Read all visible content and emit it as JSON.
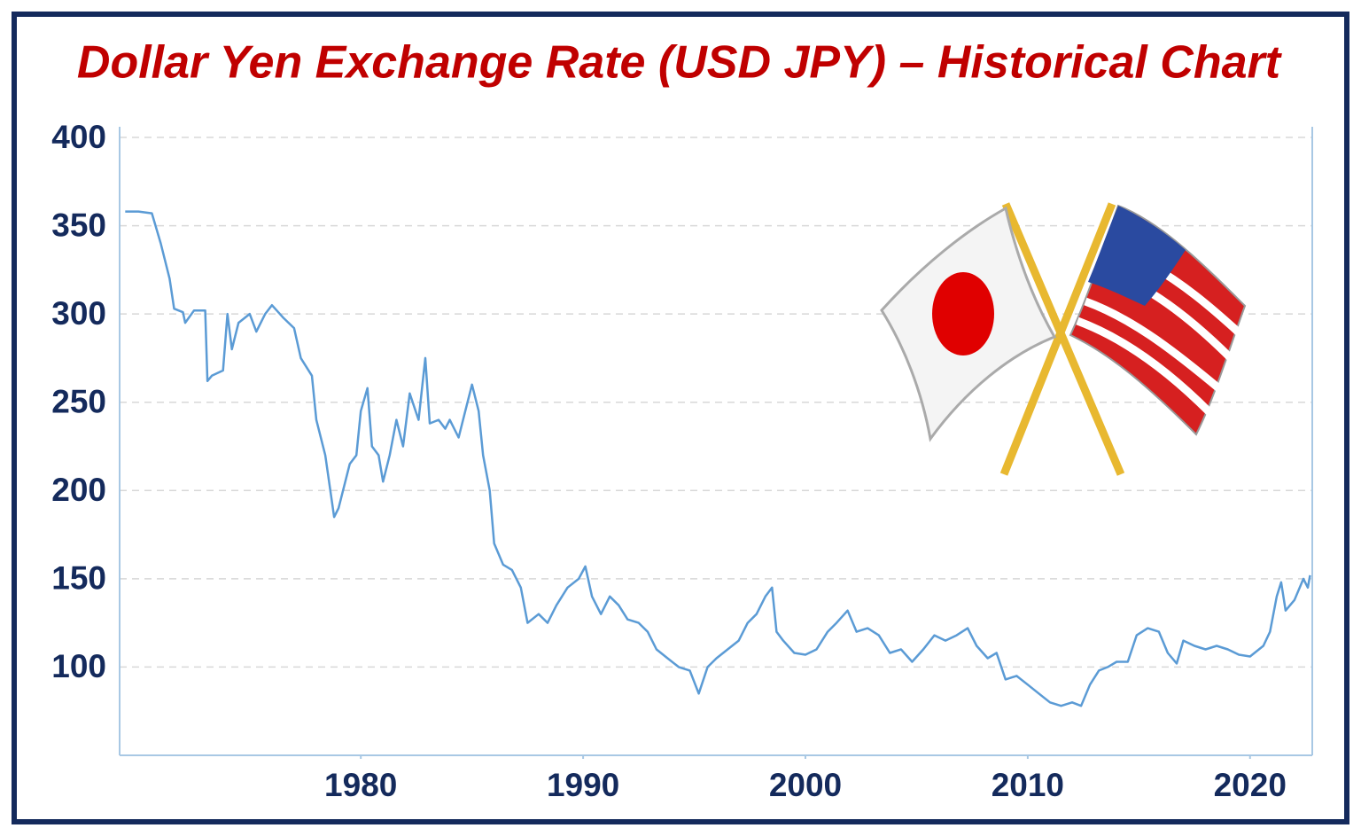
{
  "chart_data": {
    "type": "line",
    "title": "Dollar Yen Exchange Rate (USD JPY) – Historical Chart",
    "xlim": [
      1969.15,
      2022.8
    ],
    "xticks": [
      1980,
      1990,
      2000,
      2010,
      2020
    ],
    "ylim": [
      50,
      400
    ],
    "yticks": [
      100,
      150,
      200,
      250,
      300,
      350,
      400
    ],
    "grid": true,
    "series": [
      {
        "name": "USD JPY",
        "color": "#5b9bd5",
        "x": [
          1969.4,
          1970,
          1970.6,
          1971,
          1971.4,
          1971.6,
          1972,
          1972.1,
          1972.5,
          1973,
          1973.1,
          1973.3,
          1973.8,
          1974,
          1974.2,
          1974.5,
          1975,
          1975.3,
          1975.7,
          1976,
          1976.5,
          1977,
          1977.3,
          1977.8,
          1978,
          1978.4,
          1978.8,
          1979,
          1979.5,
          1979.8,
          1980,
          1980.3,
          1980.5,
          1980.8,
          1981,
          1981.3,
          1981.6,
          1981.9,
          1982.2,
          1982.6,
          1982.9,
          1983.1,
          1983.5,
          1983.8,
          1984,
          1984.4,
          1984.7,
          1985,
          1985.3,
          1985.5,
          1985.8,
          1986,
          1986.4,
          1986.8,
          1987.2,
          1987.5,
          1988,
          1988.4,
          1988.8,
          1989.3,
          1989.8,
          1990.1,
          1990.4,
          1990.8,
          1991.2,
          1991.6,
          1992,
          1992.5,
          1992.9,
          1993.3,
          1993.8,
          1994.3,
          1994.8,
          1995.2,
          1995.6,
          1996,
          1996.5,
          1997,
          1997.4,
          1997.8,
          1998.2,
          1998.5,
          1998.7,
          1999,
          1999.5,
          2000,
          2000.5,
          2001,
          2001.4,
          2001.9,
          2002.3,
          2002.8,
          2003.3,
          2003.8,
          2004.3,
          2004.8,
          2005.3,
          2005.8,
          2006.3,
          2006.8,
          2007.3,
          2007.7,
          2008.2,
          2008.6,
          2009,
          2009.5,
          2010,
          2010.5,
          2011,
          2011.5,
          2012,
          2012.4,
          2012.8,
          2013.2,
          2013.6,
          2014,
          2014.5,
          2014.9,
          2015.4,
          2015.9,
          2016.3,
          2016.7,
          2017,
          2017.5,
          2018,
          2018.5,
          2019,
          2019.5,
          2020,
          2020.6,
          2020.9,
          2021.2,
          2021.4,
          2021.6,
          2022,
          2022.4,
          2022.6,
          2022.7
        ],
        "values": [
          358,
          358,
          357,
          340,
          320,
          303,
          301,
          295,
          302,
          302,
          262,
          265,
          268,
          300,
          280,
          295,
          300,
          290,
          300,
          305,
          298,
          292,
          275,
          265,
          240,
          220,
          185,
          190,
          215,
          220,
          245,
          258,
          225,
          220,
          205,
          220,
          240,
          225,
          255,
          240,
          275,
          238,
          240,
          235,
          240,
          230,
          245,
          260,
          245,
          220,
          200,
          170,
          158,
          155,
          145,
          125,
          130,
          125,
          135,
          145,
          150,
          157,
          140,
          130,
          140,
          135,
          127,
          125,
          120,
          110,
          105,
          100,
          98,
          85,
          100,
          105,
          110,
          115,
          125,
          130,
          140,
          145,
          120,
          115,
          108,
          107,
          110,
          120,
          125,
          132,
          120,
          122,
          118,
          108,
          110,
          103,
          110,
          118,
          115,
          118,
          122,
          112,
          105,
          108,
          93,
          95,
          90,
          85,
          80,
          78,
          80,
          78,
          90,
          98,
          100,
          103,
          103,
          118,
          122,
          120,
          108,
          102,
          115,
          112,
          110,
          112,
          110,
          107,
          106,
          112,
          120,
          140,
          148,
          132,
          138,
          150,
          145,
          152
        ]
      }
    ]
  }
}
